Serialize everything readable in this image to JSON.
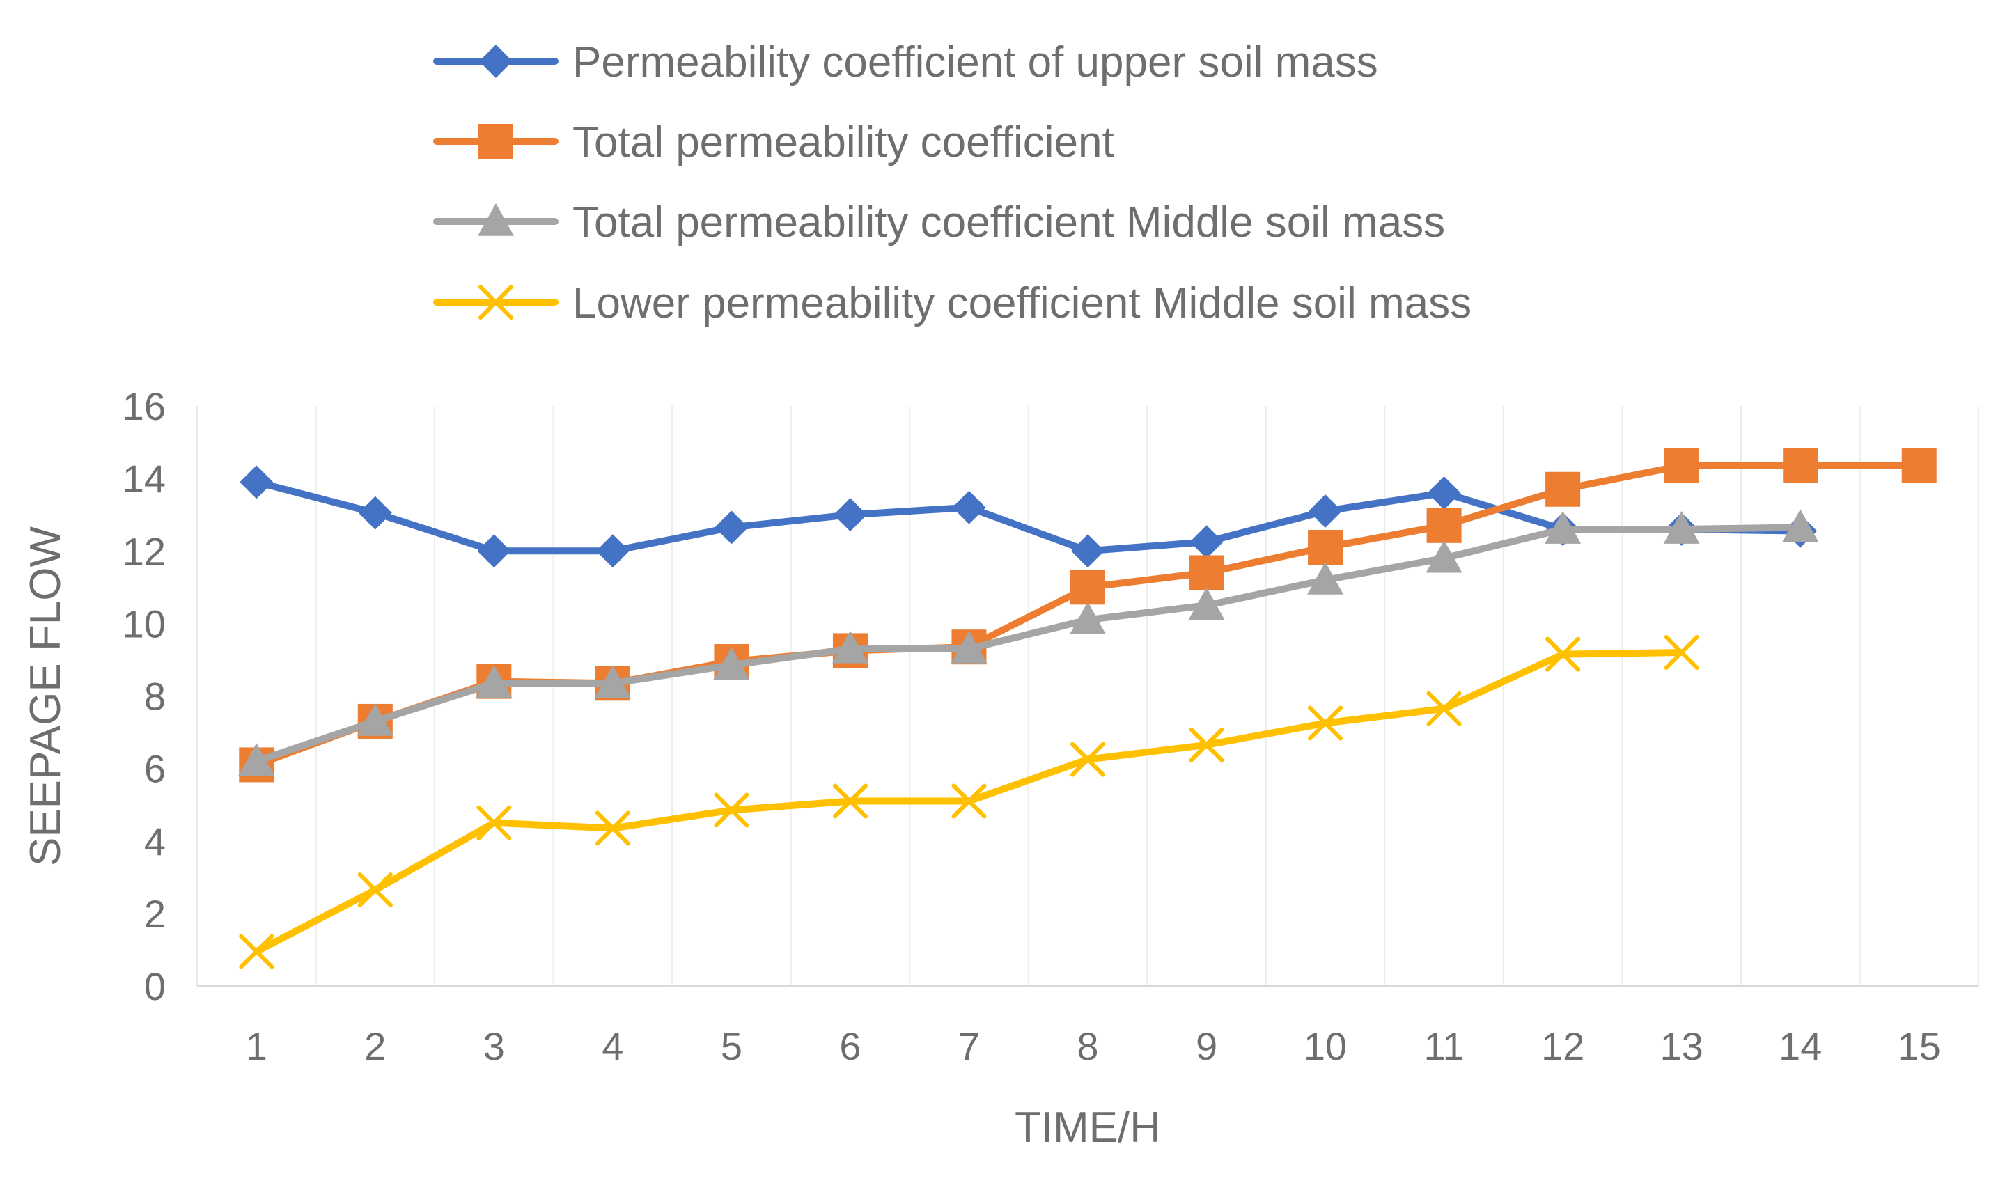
{
  "chart_data": {
    "type": "line",
    "title": "",
    "xlabel": "TIME/H",
    "ylabel": "SEEPAGE FLOW",
    "x": [
      "1",
      "2",
      "3",
      "4",
      "5",
      "6",
      "7",
      "8",
      "9",
      "10",
      "11",
      "12",
      "13",
      "14",
      "15"
    ],
    "ylim": [
      0,
      16
    ],
    "yticks": [
      "0",
      "2",
      "4",
      "6",
      "8",
      "10",
      "12",
      "14",
      "16"
    ],
    "grid": "vertical",
    "legend_position": "top",
    "series": [
      {
        "name": "Permeability coefficient of upper soil mass",
        "color": "#4472c4",
        "marker": "diamond",
        "values": [
          13.9,
          13.05,
          12.0,
          12.0,
          12.65,
          13.0,
          13.2,
          12.0,
          12.25,
          13.1,
          13.6,
          12.6,
          12.6,
          12.55,
          null
        ]
      },
      {
        "name": "Total permeability coefficient",
        "color": "#ed7d31",
        "marker": "square",
        "values": [
          6.1,
          7.3,
          8.4,
          8.35,
          8.95,
          9.25,
          9.35,
          11.0,
          11.4,
          12.1,
          12.7,
          13.7,
          14.35,
          14.35,
          14.35
        ]
      },
      {
        "name": "Total permeability coefficient Middle soil mass",
        "color": "#a5a5a5",
        "marker": "triangle",
        "values": [
          6.2,
          7.3,
          8.35,
          8.35,
          8.85,
          9.3,
          9.3,
          10.1,
          10.5,
          11.2,
          11.8,
          12.6,
          12.6,
          12.65,
          null
        ]
      },
      {
        "name": "Lower permeability coefficient Middle soil mass",
        "color": "#ffc000",
        "marker": "x",
        "values": [
          0.95,
          2.65,
          4.5,
          4.35,
          4.85,
          5.1,
          5.1,
          6.25,
          6.65,
          7.25,
          7.65,
          9.15,
          9.2,
          null,
          null
        ]
      }
    ]
  }
}
